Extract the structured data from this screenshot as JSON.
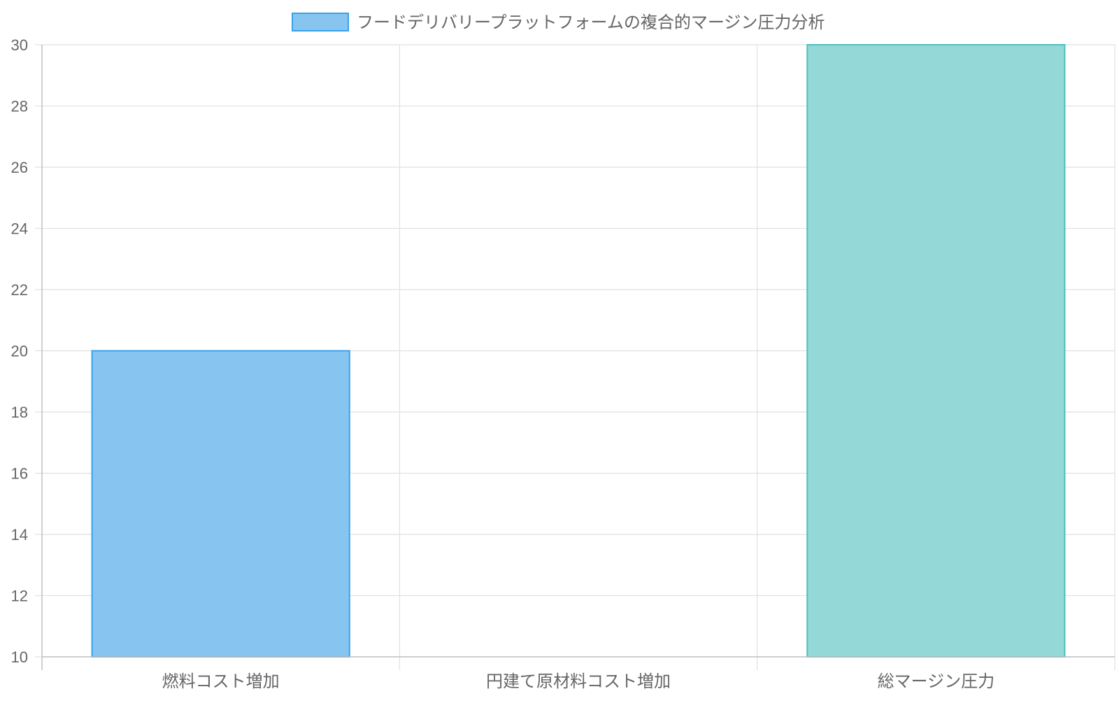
{
  "chart_data": {
    "type": "bar",
    "categories": [
      "燃料コスト増加",
      "円建て原材料コスト増加",
      "総マージン圧力"
    ],
    "series": [
      {
        "name": "フードデリバリープラットフォームの複合的マージン圧力分析",
        "values": [
          20,
          10,
          30
        ]
      }
    ],
    "ylim": [
      10,
      30
    ],
    "yticks": [
      10,
      12,
      14,
      16,
      18,
      20,
      22,
      24,
      26,
      28,
      30
    ],
    "grid": true,
    "legend_position": "top-center",
    "colors": {
      "bar_fills": [
        "#87c5f0",
        "#ffc1cf",
        "#94d8d8"
      ],
      "bar_strokes": [
        "#36a2eb",
        "#ff6384",
        "#4bc0c0"
      ],
      "legend_fill": "#87c5f0",
      "legend_stroke": "#36a2eb",
      "grid": "#e1e1e1",
      "axis": "#bfbfbf",
      "text": "#666666"
    }
  }
}
